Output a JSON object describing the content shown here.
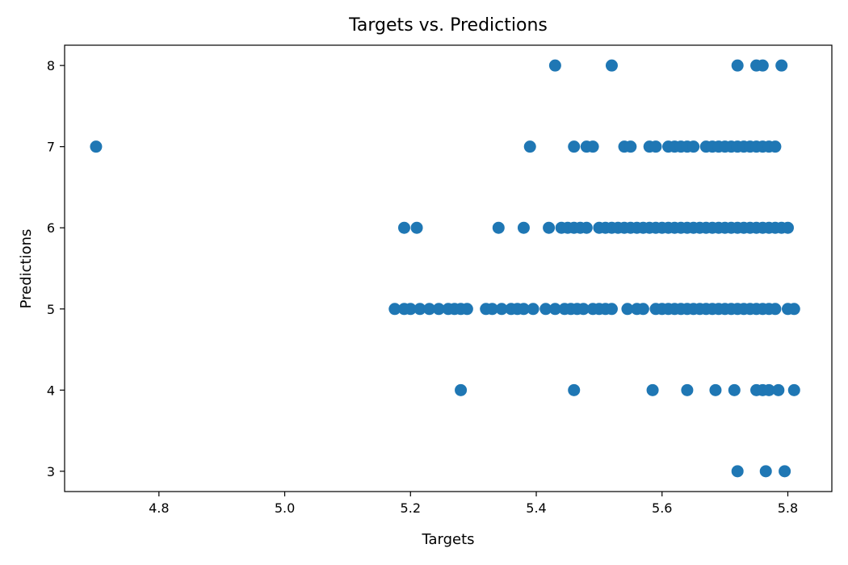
{
  "chart_data": {
    "type": "scatter",
    "title": "Targets vs. Predictions",
    "xlabel": "Targets",
    "ylabel": "Predictions",
    "xlim": [
      4.65,
      5.87
    ],
    "ylim": [
      2.75,
      8.25
    ],
    "xticks": [
      4.8,
      5.0,
      5.2,
      5.4,
      5.6,
      5.8
    ],
    "xtick_labels": [
      "4.8",
      "5.0",
      "5.2",
      "5.4",
      "5.6",
      "5.8"
    ],
    "yticks": [
      3,
      4,
      5,
      6,
      7,
      8
    ],
    "ytick_labels": [
      "3",
      "4",
      "5",
      "6",
      "7",
      "8"
    ],
    "grid": false,
    "marker_color": "#1f77b4",
    "points": [
      {
        "x": 4.7,
        "y": 7
      },
      {
        "x": 5.39,
        "y": 7
      },
      {
        "x": 5.46,
        "y": 7
      },
      {
        "x": 5.48,
        "y": 7
      },
      {
        "x": 5.49,
        "y": 7
      },
      {
        "x": 5.54,
        "y": 7
      },
      {
        "x": 5.55,
        "y": 7
      },
      {
        "x": 5.58,
        "y": 7
      },
      {
        "x": 5.59,
        "y": 7
      },
      {
        "x": 5.61,
        "y": 7
      },
      {
        "x": 5.62,
        "y": 7
      },
      {
        "x": 5.63,
        "y": 7
      },
      {
        "x": 5.64,
        "y": 7
      },
      {
        "x": 5.65,
        "y": 7
      },
      {
        "x": 5.67,
        "y": 7
      },
      {
        "x": 5.68,
        "y": 7
      },
      {
        "x": 5.69,
        "y": 7
      },
      {
        "x": 5.7,
        "y": 7
      },
      {
        "x": 5.71,
        "y": 7
      },
      {
        "x": 5.72,
        "y": 7
      },
      {
        "x": 5.73,
        "y": 7
      },
      {
        "x": 5.74,
        "y": 7
      },
      {
        "x": 5.75,
        "y": 7
      },
      {
        "x": 5.76,
        "y": 7
      },
      {
        "x": 5.77,
        "y": 7
      },
      {
        "x": 5.78,
        "y": 7
      },
      {
        "x": 5.43,
        "y": 8
      },
      {
        "x": 5.52,
        "y": 8
      },
      {
        "x": 5.72,
        "y": 8
      },
      {
        "x": 5.75,
        "y": 8
      },
      {
        "x": 5.76,
        "y": 8
      },
      {
        "x": 5.79,
        "y": 8
      },
      {
        "x": 5.19,
        "y": 6
      },
      {
        "x": 5.21,
        "y": 6
      },
      {
        "x": 5.34,
        "y": 6
      },
      {
        "x": 5.38,
        "y": 6
      },
      {
        "x": 5.42,
        "y": 6
      },
      {
        "x": 5.44,
        "y": 6
      },
      {
        "x": 5.45,
        "y": 6
      },
      {
        "x": 5.46,
        "y": 6
      },
      {
        "x": 5.47,
        "y": 6
      },
      {
        "x": 5.48,
        "y": 6
      },
      {
        "x": 5.5,
        "y": 6
      },
      {
        "x": 5.51,
        "y": 6
      },
      {
        "x": 5.52,
        "y": 6
      },
      {
        "x": 5.53,
        "y": 6
      },
      {
        "x": 5.54,
        "y": 6
      },
      {
        "x": 5.55,
        "y": 6
      },
      {
        "x": 5.56,
        "y": 6
      },
      {
        "x": 5.57,
        "y": 6
      },
      {
        "x": 5.58,
        "y": 6
      },
      {
        "x": 5.59,
        "y": 6
      },
      {
        "x": 5.6,
        "y": 6
      },
      {
        "x": 5.61,
        "y": 6
      },
      {
        "x": 5.62,
        "y": 6
      },
      {
        "x": 5.63,
        "y": 6
      },
      {
        "x": 5.64,
        "y": 6
      },
      {
        "x": 5.65,
        "y": 6
      },
      {
        "x": 5.66,
        "y": 6
      },
      {
        "x": 5.67,
        "y": 6
      },
      {
        "x": 5.68,
        "y": 6
      },
      {
        "x": 5.69,
        "y": 6
      },
      {
        "x": 5.7,
        "y": 6
      },
      {
        "x": 5.71,
        "y": 6
      },
      {
        "x": 5.72,
        "y": 6
      },
      {
        "x": 5.73,
        "y": 6
      },
      {
        "x": 5.74,
        "y": 6
      },
      {
        "x": 5.75,
        "y": 6
      },
      {
        "x": 5.76,
        "y": 6
      },
      {
        "x": 5.77,
        "y": 6
      },
      {
        "x": 5.78,
        "y": 6
      },
      {
        "x": 5.79,
        "y": 6
      },
      {
        "x": 5.8,
        "y": 6
      },
      {
        "x": 5.175,
        "y": 5
      },
      {
        "x": 5.19,
        "y": 5
      },
      {
        "x": 5.2,
        "y": 5
      },
      {
        "x": 5.215,
        "y": 5
      },
      {
        "x": 5.23,
        "y": 5
      },
      {
        "x": 5.245,
        "y": 5
      },
      {
        "x": 5.26,
        "y": 5
      },
      {
        "x": 5.27,
        "y": 5
      },
      {
        "x": 5.28,
        "y": 5
      },
      {
        "x": 5.29,
        "y": 5
      },
      {
        "x": 5.32,
        "y": 5
      },
      {
        "x": 5.33,
        "y": 5
      },
      {
        "x": 5.345,
        "y": 5
      },
      {
        "x": 5.36,
        "y": 5
      },
      {
        "x": 5.37,
        "y": 5
      },
      {
        "x": 5.38,
        "y": 5
      },
      {
        "x": 5.395,
        "y": 5
      },
      {
        "x": 5.415,
        "y": 5
      },
      {
        "x": 5.43,
        "y": 5
      },
      {
        "x": 5.445,
        "y": 5
      },
      {
        "x": 5.455,
        "y": 5
      },
      {
        "x": 5.465,
        "y": 5
      },
      {
        "x": 5.475,
        "y": 5
      },
      {
        "x": 5.49,
        "y": 5
      },
      {
        "x": 5.5,
        "y": 5
      },
      {
        "x": 5.51,
        "y": 5
      },
      {
        "x": 5.52,
        "y": 5
      },
      {
        "x": 5.545,
        "y": 5
      },
      {
        "x": 5.56,
        "y": 5
      },
      {
        "x": 5.57,
        "y": 5
      },
      {
        "x": 5.59,
        "y": 5
      },
      {
        "x": 5.6,
        "y": 5
      },
      {
        "x": 5.61,
        "y": 5
      },
      {
        "x": 5.62,
        "y": 5
      },
      {
        "x": 5.63,
        "y": 5
      },
      {
        "x": 5.64,
        "y": 5
      },
      {
        "x": 5.65,
        "y": 5
      },
      {
        "x": 5.66,
        "y": 5
      },
      {
        "x": 5.67,
        "y": 5
      },
      {
        "x": 5.68,
        "y": 5
      },
      {
        "x": 5.69,
        "y": 5
      },
      {
        "x": 5.7,
        "y": 5
      },
      {
        "x": 5.71,
        "y": 5
      },
      {
        "x": 5.72,
        "y": 5
      },
      {
        "x": 5.73,
        "y": 5
      },
      {
        "x": 5.74,
        "y": 5
      },
      {
        "x": 5.75,
        "y": 5
      },
      {
        "x": 5.76,
        "y": 5
      },
      {
        "x": 5.77,
        "y": 5
      },
      {
        "x": 5.78,
        "y": 5
      },
      {
        "x": 5.8,
        "y": 5
      },
      {
        "x": 5.81,
        "y": 5
      },
      {
        "x": 5.28,
        "y": 4
      },
      {
        "x": 5.46,
        "y": 4
      },
      {
        "x": 5.585,
        "y": 4
      },
      {
        "x": 5.64,
        "y": 4
      },
      {
        "x": 5.685,
        "y": 4
      },
      {
        "x": 5.715,
        "y": 4
      },
      {
        "x": 5.75,
        "y": 4
      },
      {
        "x": 5.76,
        "y": 4
      },
      {
        "x": 5.77,
        "y": 4
      },
      {
        "x": 5.785,
        "y": 4
      },
      {
        "x": 5.81,
        "y": 4
      },
      {
        "x": 5.72,
        "y": 3
      },
      {
        "x": 5.765,
        "y": 3
      },
      {
        "x": 5.795,
        "y": 3
      }
    ]
  }
}
